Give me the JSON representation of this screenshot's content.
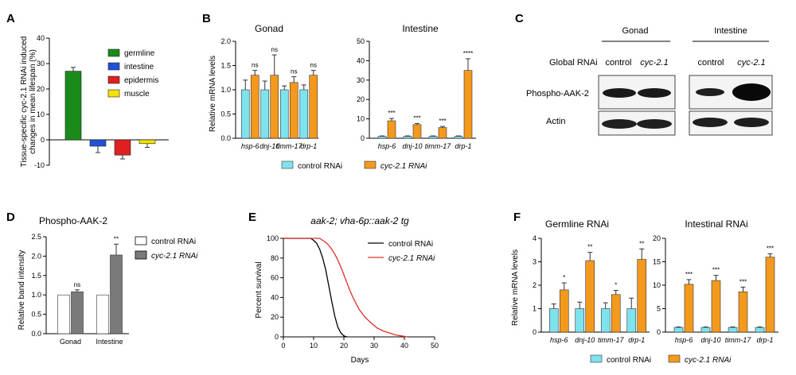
{
  "panels": {
    "A": {
      "label": "A",
      "chart_data": {
        "type": "bar",
        "categories": [
          "germline",
          "intestine",
          "epidermis",
          "muscle"
        ],
        "values": [
          27,
          -2.5,
          -6,
          -1.5
        ],
        "errors": [
          1.5,
          2.5,
          1.5,
          1.5
        ],
        "colors": [
          "#1a8a1a",
          "#2050d8",
          "#e02020",
          "#f2e200"
        ],
        "ylabel_line1": "Tissue-specific cyc-2.1 RNAi induced",
        "ylabel_line2": "changes in mean lifespan (%)",
        "ylim": [
          -10,
          40
        ],
        "yticks": [
          "-10",
          "0",
          "10",
          "20",
          "30",
          "40"
        ],
        "legend": [
          "germline",
          "intestine",
          "epidermis",
          "muscle"
        ]
      }
    },
    "B": {
      "label": "B",
      "chart_data": [
        {
          "type": "bar",
          "title": "Gonad",
          "ylabel": "Relative mRNA levels",
          "categories": [
            "hsp-6",
            "dnj-10",
            "timm-17",
            "drp-1"
          ],
          "series": [
            {
              "name": "control RNAi",
              "values": [
                1.0,
                1.0,
                1.0,
                1.0
              ],
              "errors": [
                0.2,
                0.18,
                0.08,
                0.1
              ]
            },
            {
              "name": "cyc-2.1 RNAi",
              "values": [
                1.3,
                1.3,
                1.15,
                1.3
              ],
              "errors": [
                0.1,
                0.42,
                0.12,
                0.1
              ]
            }
          ],
          "significance": [
            "ns",
            "ns",
            "ns",
            "ns"
          ],
          "ylim": [
            0,
            2.0
          ],
          "yticks": [
            "0.0",
            "0.5",
            "1.0",
            "1.5",
            "2.0"
          ]
        },
        {
          "type": "bar",
          "title": "Intestine",
          "categories": [
            "hsp-6",
            "dnj-10",
            "timm-17",
            "drp-1"
          ],
          "series": [
            {
              "name": "control RNAi",
              "values": [
                1,
                1,
                1,
                1
              ],
              "errors": [
                0.2,
                0.2,
                0.2,
                0.2
              ]
            },
            {
              "name": "cyc-2.1 RNAi",
              "values": [
                9,
                7,
                5.5,
                35
              ],
              "errors": [
                1.2,
                0.6,
                0.6,
                6
              ]
            }
          ],
          "significance": [
            "***",
            "***",
            "***",
            "****"
          ],
          "ylim": [
            0,
            50
          ],
          "yticks": [
            "0",
            "10",
            "20",
            "30",
            "40",
            "50"
          ]
        }
      ],
      "legend": {
        "control": "control RNAi",
        "treat": "cyc-2.1 RNAi"
      }
    },
    "C": {
      "label": "C",
      "header_gonad": "Gonad",
      "header_intestine": "Intestine",
      "row_label": "Global RNAi",
      "columns": [
        "control",
        "cyc-2.1",
        "control",
        "cyc-2.1"
      ],
      "bands": [
        "Phospho-AAK-2",
        "Actin"
      ]
    },
    "D": {
      "label": "D",
      "chart_data": {
        "type": "bar",
        "title": "Phospho-AAK-2",
        "ylabel": "Relative band intensity",
        "categories": [
          "Gonad",
          "Intestine"
        ],
        "series": [
          {
            "name": "control RNAi",
            "values": [
              1.0,
              1.0
            ],
            "errors": [
              0,
              0
            ]
          },
          {
            "name": "cyc-2.1 RNAi",
            "values": [
              1.08,
              2.03
            ],
            "errors": [
              0.05,
              0.28
            ]
          }
        ],
        "significance": [
          "ns",
          "**"
        ],
        "ylim": [
          0,
          2.5
        ],
        "yticks": [
          "0.0",
          "0.5",
          "1.0",
          "1.5",
          "2.0",
          "2.5"
        ]
      },
      "legend": {
        "control": "control RNAi",
        "treat": "cyc-2.1 RNAi"
      }
    },
    "E": {
      "label": "E",
      "chart_data": {
        "type": "line",
        "title": "aak-2; vha-6p::aak-2 tg",
        "xlabel": "Days",
        "ylabel": "Percent survival",
        "xlim": [
          0,
          50
        ],
        "ylim": [
          0,
          100
        ],
        "xticks": [
          "0",
          "10",
          "20",
          "30",
          "40",
          "50"
        ],
        "yticks": [
          "0",
          "20",
          "40",
          "60",
          "80",
          "100"
        ],
        "series": [
          {
            "name": "control RNAi",
            "color": "#000000",
            "x": [
              0,
              9,
              10,
              11,
              12,
              13,
              14,
              15,
              16,
              17,
              18,
              19,
              20,
              21
            ],
            "y": [
              100,
              100,
              98,
              95,
              89,
              80,
              68,
              52,
              36,
              21,
              10,
              4,
              1,
              0
            ]
          },
          {
            "name": "cyc-2.1 RNAi",
            "color": "#e0302a",
            "x": [
              0,
              12,
              13,
              14,
              15,
              16,
              17,
              18,
              19,
              20,
              21,
              22,
              23,
              24,
              25,
              27,
              29,
              31,
              33,
              35,
              37,
              39,
              41
            ],
            "y": [
              100,
              100,
              98,
              96,
              93,
              89,
              84,
              78,
              71,
              63,
              55,
              47,
              40,
              34,
              28,
              20,
              14,
              9,
              6,
              4,
              2,
              1,
              0
            ]
          }
        ]
      }
    },
    "F": {
      "label": "F",
      "chart_data": [
        {
          "type": "bar",
          "title": "Germline RNAi",
          "ylabel": "Relative mRNA levels",
          "categories": [
            "hsp-6",
            "dnj-10",
            "timm-17",
            "drp-1"
          ],
          "series": [
            {
              "name": "control RNAi",
              "values": [
                1.0,
                1.0,
                1.0,
                1.0
              ],
              "errors": [
                0.2,
                0.28,
                0.25,
                0.45
              ]
            },
            {
              "name": "cyc-2.1 RNAi",
              "values": [
                1.8,
                3.05,
                1.6,
                3.1
              ],
              "errors": [
                0.3,
                0.35,
                0.18,
                0.45
              ]
            }
          ],
          "significance": [
            "*",
            "**",
            "*",
            "**"
          ],
          "ylim": [
            0,
            4
          ],
          "yticks": [
            "0",
            "1",
            "2",
            "3",
            "4"
          ]
        },
        {
          "type": "bar",
          "title": "Intestinal RNAi",
          "categories": [
            "hsp-6",
            "dnj-10",
            "timm-17",
            "drp-1"
          ],
          "series": [
            {
              "name": "control RNAi",
              "values": [
                1,
                1,
                1,
                1
              ],
              "errors": [
                0.1,
                0.1,
                0.1,
                0.1
              ]
            },
            {
              "name": "cyc-2.1 RNAi",
              "values": [
                10.2,
                11,
                8.6,
                16
              ],
              "errors": [
                1.0,
                1.1,
                1.0,
                0.7
              ]
            }
          ],
          "significance": [
            "***",
            "***",
            "***",
            "***"
          ],
          "ylim": [
            0,
            20
          ],
          "yticks": [
            "0",
            "5",
            "10",
            "15",
            "20"
          ]
        }
      ],
      "legend": {
        "control": "control RNAi",
        "treat": "cyc-2.1 RNAi"
      }
    }
  },
  "colors": {
    "control_cyan": "#7fe3ee",
    "treat_orange": "#f39a1e",
    "d_gray": "#7a7a7a"
  }
}
